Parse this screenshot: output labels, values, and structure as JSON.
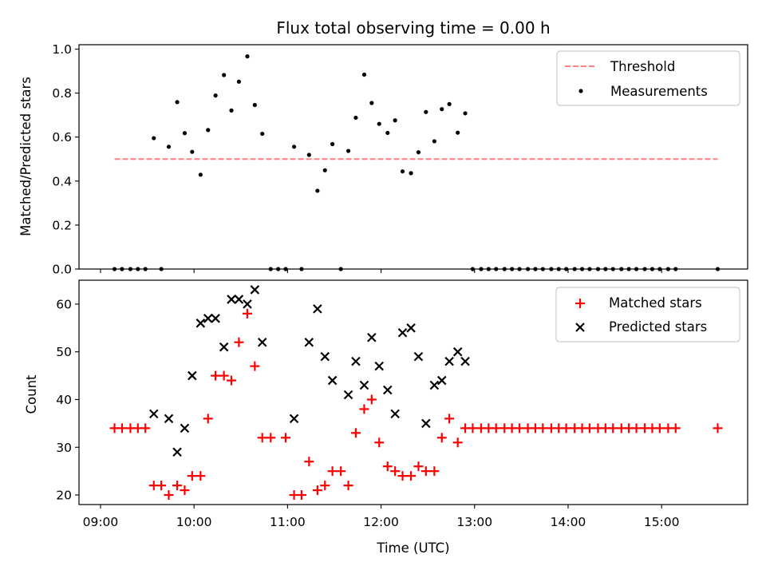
{
  "chart_data": [
    {
      "type": "scatter",
      "title": "Flux total observing time = 0.00 h",
      "xlabel": "",
      "ylabel": "Matched/Predicted stars",
      "x_unit": "hours (UTC)",
      "xlim": [
        8.77,
        15.92
      ],
      "ylim": [
        0.0,
        1.02
      ],
      "yticks": [
        0.0,
        0.2,
        0.4,
        0.6,
        0.8,
        1.0
      ],
      "ytick_labels": [
        "0.0",
        "0.2",
        "0.4",
        "0.6",
        "0.8",
        "1.0"
      ],
      "x_tick_labels_visible": false,
      "legend_position": "top-right",
      "threshold": {
        "name": "Threshold",
        "value": 0.5,
        "x": [
          9.15,
          15.6
        ],
        "color": "#ff8080",
        "style": "dashed"
      },
      "series": [
        {
          "name": "Measurements",
          "color": "#000000",
          "marker": "dot",
          "points": [
            [
              9.15,
              0.0
            ],
            [
              9.23,
              0.0
            ],
            [
              9.32,
              0.0
            ],
            [
              9.4,
              0.0
            ],
            [
              9.48,
              0.0
            ],
            [
              9.57,
              0.595
            ],
            [
              9.65,
              0.0
            ],
            [
              9.73,
              0.556
            ],
            [
              9.82,
              0.759
            ],
            [
              9.9,
              0.618
            ],
            [
              9.98,
              0.533
            ],
            [
              10.07,
              0.429
            ],
            [
              10.15,
              0.632
            ],
            [
              10.23,
              0.789
            ],
            [
              10.32,
              0.882
            ],
            [
              10.4,
              0.721
            ],
            [
              10.48,
              0.852
            ],
            [
              10.57,
              0.967
            ],
            [
              10.65,
              0.746
            ],
            [
              10.73,
              0.615
            ],
            [
              10.82,
              0.0
            ],
            [
              10.9,
              0.0
            ],
            [
              10.98,
              0.0
            ],
            [
              11.07,
              0.556
            ],
            [
              11.15,
              0.0
            ],
            [
              11.23,
              0.519
            ],
            [
              11.32,
              0.356
            ],
            [
              11.4,
              0.449
            ],
            [
              11.48,
              0.568
            ],
            [
              11.57,
              0.0
            ],
            [
              11.65,
              0.537
            ],
            [
              11.73,
              0.688
            ],
            [
              11.82,
              0.884
            ],
            [
              11.9,
              0.755
            ],
            [
              11.98,
              0.66
            ],
            [
              12.07,
              0.619
            ],
            [
              12.15,
              0.676
            ],
            [
              12.23,
              0.444
            ],
            [
              12.32,
              0.436
            ],
            [
              12.4,
              0.531
            ],
            [
              12.48,
              0.714
            ],
            [
              12.57,
              0.581
            ],
            [
              12.65,
              0.727
            ],
            [
              12.73,
              0.75
            ],
            [
              12.82,
              0.62
            ],
            [
              12.9,
              0.708
            ],
            [
              12.98,
              0.0
            ],
            [
              13.07,
              0.0
            ],
            [
              13.15,
              0.0
            ],
            [
              13.23,
              0.0
            ],
            [
              13.32,
              0.0
            ],
            [
              13.4,
              0.0
            ],
            [
              13.48,
              0.0
            ],
            [
              13.57,
              0.0
            ],
            [
              13.65,
              0.0
            ],
            [
              13.73,
              0.0
            ],
            [
              13.82,
              0.0
            ],
            [
              13.9,
              0.0
            ],
            [
              13.98,
              0.0
            ],
            [
              14.07,
              0.0
            ],
            [
              14.15,
              0.0
            ],
            [
              14.23,
              0.0
            ],
            [
              14.32,
              0.0
            ],
            [
              14.4,
              0.0
            ],
            [
              14.48,
              0.0
            ],
            [
              14.57,
              0.0
            ],
            [
              14.65,
              0.0
            ],
            [
              14.73,
              0.0
            ],
            [
              14.82,
              0.0
            ],
            [
              14.9,
              0.0
            ],
            [
              14.98,
              0.0
            ],
            [
              15.07,
              0.0
            ],
            [
              15.15,
              0.0
            ],
            [
              15.6,
              0.0
            ]
          ]
        }
      ]
    },
    {
      "type": "scatter",
      "title": "",
      "xlabel": "Time (UTC)",
      "ylabel": "Count",
      "x_unit": "hours (UTC)",
      "xlim": [
        8.77,
        15.92
      ],
      "ylim": [
        18,
        65
      ],
      "xticks": [
        9,
        10,
        11,
        12,
        13,
        14,
        15
      ],
      "xtick_labels": [
        "09:00",
        "10:00",
        "11:00",
        "12:00",
        "13:00",
        "14:00",
        "15:00"
      ],
      "yticks": [
        20,
        30,
        40,
        50,
        60
      ],
      "ytick_labels": [
        "20",
        "30",
        "40",
        "50",
        "60"
      ],
      "legend_position": "top-right",
      "series": [
        {
          "name": "Matched stars",
          "color": "#ff0000",
          "marker": "plus",
          "points": [
            [
              9.15,
              34
            ],
            [
              9.23,
              34
            ],
            [
              9.32,
              34
            ],
            [
              9.4,
              34
            ],
            [
              9.48,
              34
            ],
            [
              9.57,
              22
            ],
            [
              9.65,
              22
            ],
            [
              9.73,
              20
            ],
            [
              9.82,
              22
            ],
            [
              9.9,
              21
            ],
            [
              9.98,
              24
            ],
            [
              10.07,
              24
            ],
            [
              10.15,
              36
            ],
            [
              10.23,
              45
            ],
            [
              10.32,
              45
            ],
            [
              10.4,
              44
            ],
            [
              10.48,
              52
            ],
            [
              10.57,
              58
            ],
            [
              10.65,
              47
            ],
            [
              10.73,
              32
            ],
            [
              10.82,
              32
            ],
            [
              10.98,
              32
            ],
            [
              11.07,
              20
            ],
            [
              11.15,
              20
            ],
            [
              11.23,
              27
            ],
            [
              11.32,
              21
            ],
            [
              11.4,
              22
            ],
            [
              11.48,
              25
            ],
            [
              11.57,
              25
            ],
            [
              11.65,
              22
            ],
            [
              11.73,
              33
            ],
            [
              11.82,
              38
            ],
            [
              11.9,
              40
            ],
            [
              11.98,
              31
            ],
            [
              12.07,
              26
            ],
            [
              12.15,
              25
            ],
            [
              12.23,
              24
            ],
            [
              12.32,
              24
            ],
            [
              12.4,
              26
            ],
            [
              12.48,
              25
            ],
            [
              12.57,
              25
            ],
            [
              12.65,
              32
            ],
            [
              12.73,
              36
            ],
            [
              12.82,
              31
            ],
            [
              12.9,
              34
            ],
            [
              12.98,
              34
            ],
            [
              13.07,
              34
            ],
            [
              13.15,
              34
            ],
            [
              13.23,
              34
            ],
            [
              13.32,
              34
            ],
            [
              13.4,
              34
            ],
            [
              13.48,
              34
            ],
            [
              13.57,
              34
            ],
            [
              13.65,
              34
            ],
            [
              13.73,
              34
            ],
            [
              13.82,
              34
            ],
            [
              13.9,
              34
            ],
            [
              13.98,
              34
            ],
            [
              14.07,
              34
            ],
            [
              14.15,
              34
            ],
            [
              14.23,
              34
            ],
            [
              14.32,
              34
            ],
            [
              14.4,
              34
            ],
            [
              14.48,
              34
            ],
            [
              14.57,
              34
            ],
            [
              14.65,
              34
            ],
            [
              14.73,
              34
            ],
            [
              14.82,
              34
            ],
            [
              14.9,
              34
            ],
            [
              14.98,
              34
            ],
            [
              15.07,
              34
            ],
            [
              15.15,
              34
            ],
            [
              15.6,
              34
            ]
          ]
        },
        {
          "name": "Predicted stars",
          "color": "#000000",
          "marker": "x",
          "points": [
            [
              9.57,
              37
            ],
            [
              9.73,
              36
            ],
            [
              9.82,
              29
            ],
            [
              9.9,
              34
            ],
            [
              9.98,
              45
            ],
            [
              10.07,
              56
            ],
            [
              10.15,
              57
            ],
            [
              10.23,
              57
            ],
            [
              10.32,
              51
            ],
            [
              10.4,
              61
            ],
            [
              10.48,
              61
            ],
            [
              10.57,
              60
            ],
            [
              10.65,
              63
            ],
            [
              10.73,
              52
            ],
            [
              11.07,
              36
            ],
            [
              11.23,
              52
            ],
            [
              11.32,
              59
            ],
            [
              11.4,
              49
            ],
            [
              11.48,
              44
            ],
            [
              11.65,
              41
            ],
            [
              11.73,
              48
            ],
            [
              11.82,
              43
            ],
            [
              11.9,
              53
            ],
            [
              11.98,
              47
            ],
            [
              12.07,
              42
            ],
            [
              12.15,
              37
            ],
            [
              12.23,
              54
            ],
            [
              12.32,
              55
            ],
            [
              12.4,
              49
            ],
            [
              12.48,
              35
            ],
            [
              12.57,
              43
            ],
            [
              12.65,
              44
            ],
            [
              12.73,
              48
            ],
            [
              12.82,
              50
            ],
            [
              12.9,
              48
            ]
          ]
        }
      ]
    }
  ]
}
